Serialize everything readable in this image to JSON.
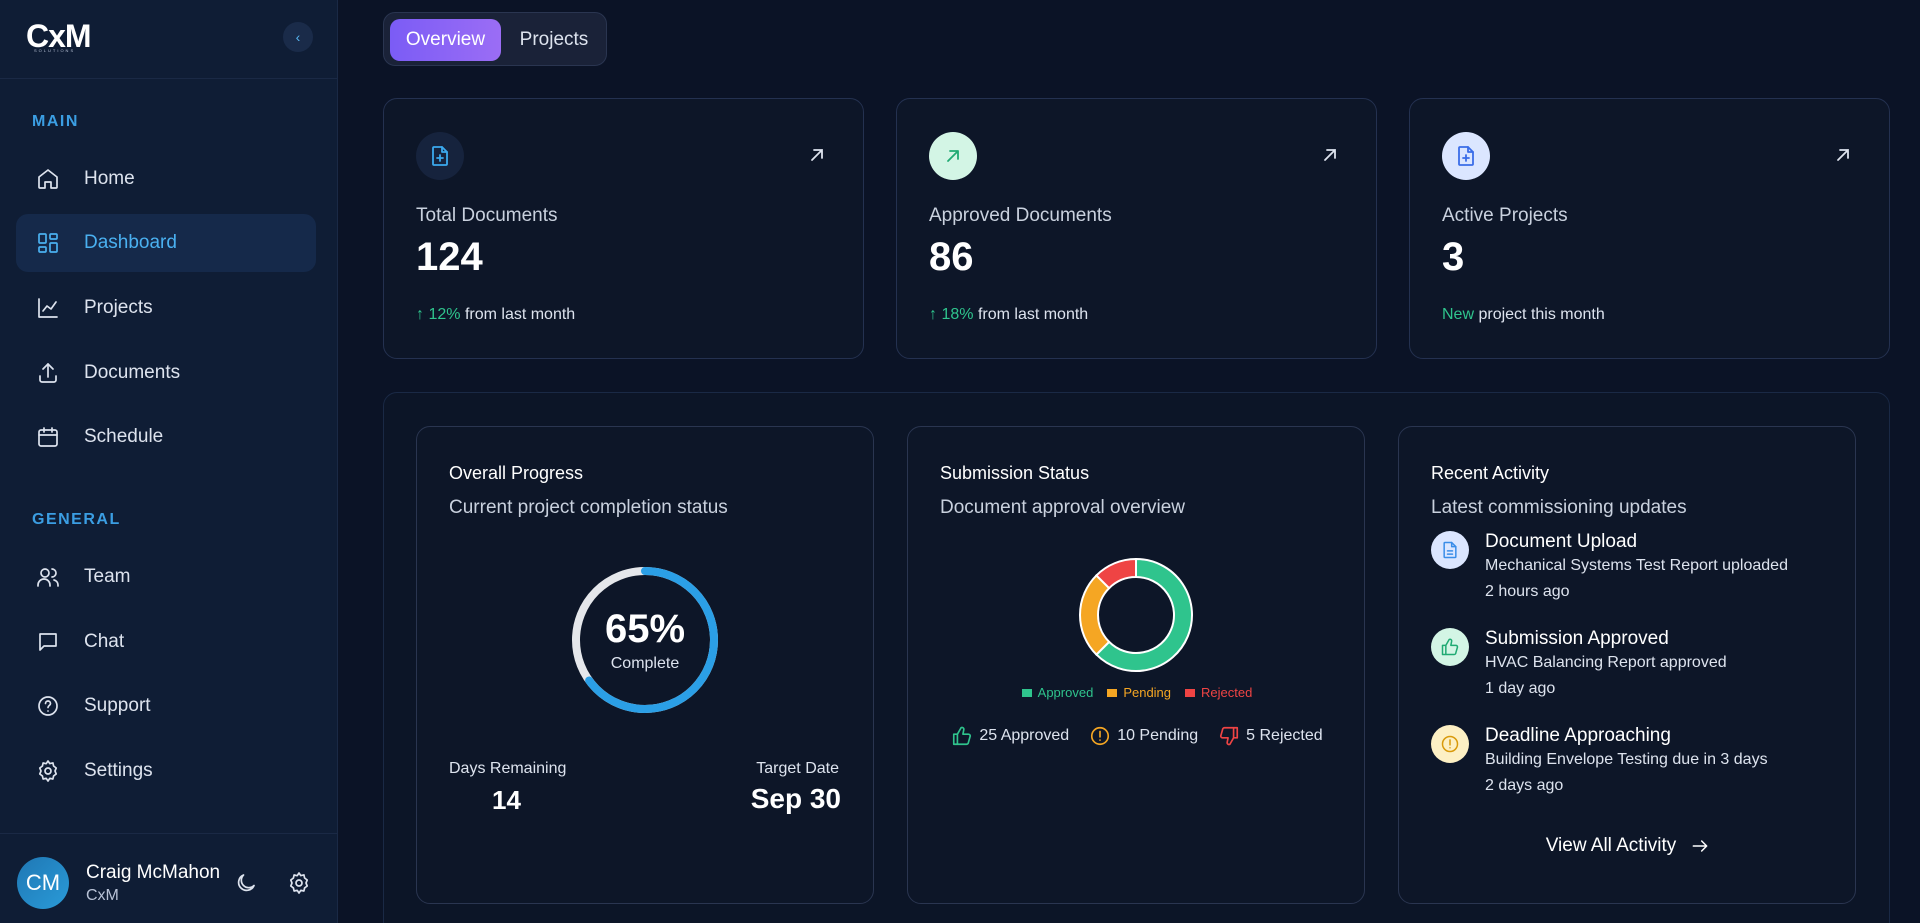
{
  "app": {
    "logo": "CxM",
    "logo_sub": "SOLUTIONS",
    "collapse_icon": "chevron-left-icon"
  },
  "sidebar": {
    "sections": [
      {
        "label": "MAIN"
      },
      {
        "label": "GENERAL"
      }
    ],
    "items": [
      {
        "label": "Home",
        "icon": "home-icon",
        "active": false
      },
      {
        "label": "Dashboard",
        "icon": "dashboard-icon",
        "active": true
      },
      {
        "label": "Projects",
        "icon": "chart-line-icon",
        "active": false
      },
      {
        "label": "Documents",
        "icon": "upload-icon",
        "active": false
      },
      {
        "label": "Schedule",
        "icon": "calendar-icon",
        "active": false
      },
      {
        "label": "Team",
        "icon": "users-icon",
        "active": false
      },
      {
        "label": "Chat",
        "icon": "chat-icon",
        "active": false
      },
      {
        "label": "Support",
        "icon": "help-circle-icon",
        "active": false
      },
      {
        "label": "Settings",
        "icon": "gear-icon",
        "active": false
      }
    ],
    "user": {
      "initials": "CM",
      "name": "Craig McMahon",
      "org": "CxM"
    }
  },
  "tabs": [
    {
      "label": "Overview",
      "active": true
    },
    {
      "label": "Projects",
      "active": false
    }
  ],
  "stats": [
    {
      "label": "Total Documents",
      "value": "124",
      "change": "12%",
      "footer": "from last month",
      "icon": "file-plus-icon"
    },
    {
      "label": "Approved Documents",
      "value": "86",
      "change": "18%",
      "footer": "from last month",
      "icon": "arrow-up-right-icon"
    },
    {
      "label": "Active Projects",
      "value": "3",
      "change": "New",
      "footer": "project this month",
      "icon": "file-plus-icon"
    }
  ],
  "progress": {
    "title": "Overall Progress",
    "subtitle": "Current project completion status",
    "percent_value": 65,
    "percent_label": "65%",
    "complete_label": "Complete",
    "days_label": "Days Remaining",
    "days_value": "14",
    "target_label": "Target Date",
    "target_value": "Sep 30"
  },
  "submission": {
    "title": "Submission Status",
    "subtitle": "Document approval overview",
    "legend": [
      {
        "label": "Approved",
        "color": "#2fc48d"
      },
      {
        "label": "Pending",
        "color": "#f5a623"
      },
      {
        "label": "Rejected",
        "color": "#ef4444"
      }
    ],
    "counts": [
      {
        "label": "25 Approved",
        "icon": "thumbs-up-icon"
      },
      {
        "label": "10 Pending",
        "icon": "alert-circle-icon"
      },
      {
        "label": "5 Rejected",
        "icon": "thumbs-down-icon"
      }
    ]
  },
  "chart_data": {
    "type": "pie",
    "categories": [
      "Approved",
      "Pending",
      "Rejected"
    ],
    "values": [
      25,
      10,
      5
    ],
    "title": "Submission Status",
    "legend": "bottom"
  },
  "activity": {
    "title": "Recent Activity",
    "subtitle": "Latest commissioning updates",
    "items": [
      {
        "title": "Document Upload",
        "desc": "Mechanical Systems Test Report uploaded",
        "time": "2 hours ago",
        "icon": "document-icon"
      },
      {
        "title": "Submission Approved",
        "desc": "HVAC Balancing Report approved",
        "time": "1 day ago",
        "icon": "thumbs-up-icon"
      },
      {
        "title": "Deadline Approaching",
        "desc": "Building Envelope Testing due in 3 days",
        "time": "2 days ago",
        "icon": "alert-circle-icon"
      }
    ],
    "view_all": "View All Activity"
  }
}
